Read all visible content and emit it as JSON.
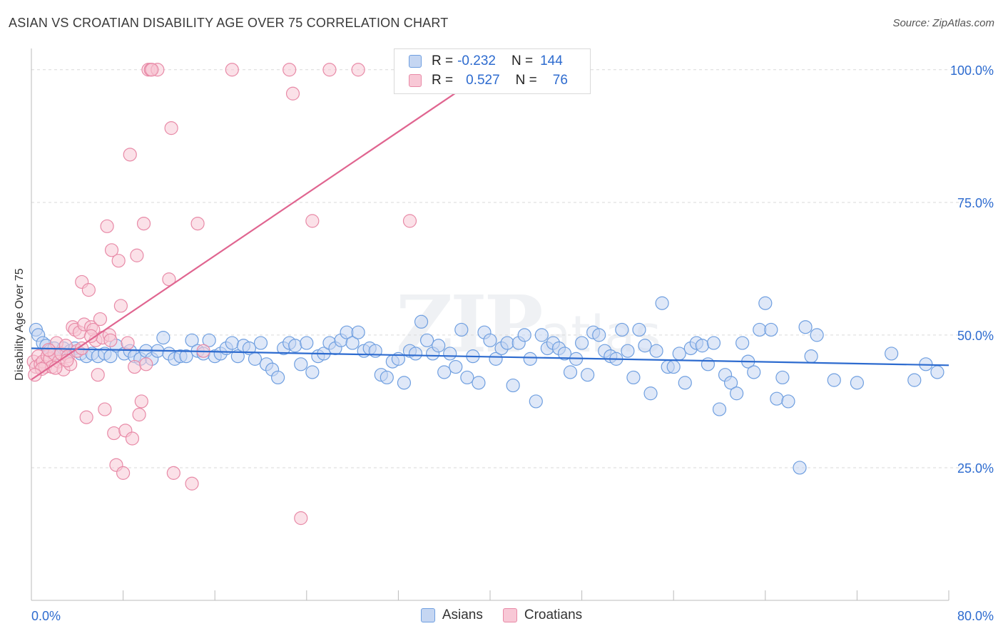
{
  "header": {
    "title": "ASIAN VS CROATIAN DISABILITY AGE OVER 75 CORRELATION CHART",
    "source": "Source: ZipAtlas.com"
  },
  "watermark": {
    "big": "ZIP",
    "small": "atlas"
  },
  "colors": {
    "asians_fill": "#c5d6f2",
    "asians_stroke": "#6f9fe0",
    "asians_line": "#2d6bcf",
    "croatians_fill": "#f8c8d6",
    "croatians_stroke": "#e88aa7",
    "croatians_line": "#e06590",
    "axis_label": "#2d6bcf",
    "grid": "#d9d9d9"
  },
  "legend": {
    "rows": [
      {
        "r_label": "R =",
        "r_value": "-0.232",
        "n_label": "N =",
        "n_value": "144"
      },
      {
        "r_label": "R =",
        "r_value": "0.527",
        "n_label": "N =",
        "n_value": "76"
      }
    ]
  },
  "bottom_legend": {
    "asians": "Asians",
    "croatians": "Croatians"
  },
  "chart_data": {
    "type": "scatter",
    "xlabel": "",
    "ylabel": "Disability Age Over 75",
    "xlim": [
      0,
      80
    ],
    "ylim": [
      0,
      104
    ],
    "x_tick_labels": [
      {
        "value": 0,
        "label": "0.0%"
      },
      {
        "value": 80,
        "label": "80.0%"
      }
    ],
    "y_tick_labels": [
      {
        "value": 25,
        "label": "25.0%"
      },
      {
        "value": 50,
        "label": "50.0%"
      },
      {
        "value": 75,
        "label": "75.0%"
      },
      {
        "value": 100,
        "label": "100.0%"
      }
    ],
    "grid": true,
    "legend_position": "top-center",
    "series": [
      {
        "name": "Asians",
        "trend": {
          "x": [
            0,
            80
          ],
          "y": [
            47.5,
            44.3
          ]
        },
        "points": [
          [
            0.4,
            51
          ],
          [
            0.6,
            50
          ],
          [
            1,
            48.5
          ],
          [
            1.3,
            48
          ],
          [
            1.6,
            47
          ],
          [
            2,
            47.5
          ],
          [
            2.4,
            46.5
          ],
          [
            2.8,
            47.5
          ],
          [
            3.4,
            47
          ],
          [
            3.8,
            47.5
          ],
          [
            4.3,
            46.5
          ],
          [
            4.8,
            46
          ],
          [
            5.3,
            46.5
          ],
          [
            5.8,
            46
          ],
          [
            6.4,
            46.5
          ],
          [
            6.9,
            46
          ],
          [
            7.4,
            48
          ],
          [
            8.1,
            46.5
          ],
          [
            8.6,
            47
          ],
          [
            9,
            46
          ],
          [
            9.5,
            45.5
          ],
          [
            10,
            47
          ],
          [
            10.5,
            45.5
          ],
          [
            11,
            47
          ],
          [
            11.5,
            49.5
          ],
          [
            12,
            46.5
          ],
          [
            12.5,
            45.5
          ],
          [
            13,
            46
          ],
          [
            13.5,
            46
          ],
          [
            14,
            49
          ],
          [
            14.5,
            47
          ],
          [
            15,
            46.5
          ],
          [
            15.5,
            49
          ],
          [
            16,
            46
          ],
          [
            16.5,
            46.5
          ],
          [
            17,
            47.5
          ],
          [
            17.5,
            48.5
          ],
          [
            18,
            46
          ],
          [
            18.5,
            48
          ],
          [
            19,
            47.5
          ],
          [
            19.5,
            45.5
          ],
          [
            20,
            48.5
          ],
          [
            20.5,
            44.5
          ],
          [
            21,
            43.5
          ],
          [
            21.5,
            42
          ],
          [
            22,
            47.5
          ],
          [
            22.5,
            48.5
          ],
          [
            23,
            48
          ],
          [
            23.5,
            44.5
          ],
          [
            24,
            48.5
          ],
          [
            24.5,
            43
          ],
          [
            25,
            46
          ],
          [
            25.5,
            46.5
          ],
          [
            26,
            48.5
          ],
          [
            26.5,
            47.5
          ],
          [
            27,
            49
          ],
          [
            27.5,
            50.5
          ],
          [
            28,
            48.5
          ],
          [
            28.5,
            50.5
          ],
          [
            29,
            47
          ],
          [
            29.5,
            47.5
          ],
          [
            30,
            47
          ],
          [
            30.5,
            42.5
          ],
          [
            31,
            42
          ],
          [
            31.5,
            45
          ],
          [
            32,
            45.5
          ],
          [
            32.5,
            41
          ],
          [
            33,
            47
          ],
          [
            33.5,
            46.5
          ],
          [
            34,
            52.5
          ],
          [
            34.5,
            49
          ],
          [
            35,
            46.5
          ],
          [
            35.5,
            48
          ],
          [
            36,
            43
          ],
          [
            36.5,
            46.5
          ],
          [
            37,
            44
          ],
          [
            37.5,
            51
          ],
          [
            38,
            42
          ],
          [
            38.5,
            46
          ],
          [
            39,
            41
          ],
          [
            39.5,
            50.5
          ],
          [
            40,
            49
          ],
          [
            40.5,
            45.5
          ],
          [
            41,
            47.5
          ],
          [
            41.5,
            48.5
          ],
          [
            42,
            40.5
          ],
          [
            42.5,
            48.5
          ],
          [
            43,
            50
          ],
          [
            43.5,
            45.5
          ],
          [
            44,
            37.5
          ],
          [
            44.5,
            50
          ],
          [
            45,
            47.5
          ],
          [
            45.5,
            48.5
          ],
          [
            46,
            47.5
          ],
          [
            46.5,
            46.5
          ],
          [
            47,
            43
          ],
          [
            47.5,
            45.5
          ],
          [
            48,
            48.5
          ],
          [
            48.5,
            42.5
          ],
          [
            49,
            50.5
          ],
          [
            49.5,
            50
          ],
          [
            50,
            47
          ],
          [
            50.5,
            46
          ],
          [
            51,
            45.5
          ],
          [
            51.5,
            51
          ],
          [
            52,
            47
          ],
          [
            52.5,
            42
          ],
          [
            53,
            51
          ],
          [
            53.5,
            48
          ],
          [
            54,
            39
          ],
          [
            54.5,
            47
          ],
          [
            55,
            56
          ],
          [
            55.5,
            44
          ],
          [
            56,
            44
          ],
          [
            56.5,
            46.5
          ],
          [
            57,
            41
          ],
          [
            57.5,
            47.5
          ],
          [
            58,
            48.5
          ],
          [
            58.5,
            48
          ],
          [
            59,
            44.5
          ],
          [
            59.5,
            48.5
          ],
          [
            60,
            36
          ],
          [
            60.5,
            42.5
          ],
          [
            61,
            41
          ],
          [
            61.5,
            39
          ],
          [
            62,
            48.5
          ],
          [
            62.5,
            45
          ],
          [
            63,
            43
          ],
          [
            63.5,
            51
          ],
          [
            64,
            56
          ],
          [
            64.5,
            51
          ],
          [
            65,
            38
          ],
          [
            65.5,
            42
          ],
          [
            66,
            37.5
          ],
          [
            67,
            25
          ],
          [
            67.5,
            51.5
          ],
          [
            68,
            46
          ],
          [
            68.5,
            50
          ],
          [
            70,
            41.5
          ],
          [
            72,
            41
          ],
          [
            75,
            46.5
          ],
          [
            77,
            41.5
          ],
          [
            78,
            44.5
          ],
          [
            79,
            43
          ]
        ]
      },
      {
        "name": "Croatians",
        "trend": {
          "x": [
            0,
            40
          ],
          "y": [
            41.6,
            100
          ]
        },
        "points": [
          [
            0.2,
            45
          ],
          [
            0.4,
            44
          ],
          [
            0.6,
            46
          ],
          [
            0.8,
            44.5
          ],
          [
            1,
            45
          ],
          [
            1.2,
            44
          ],
          [
            1.4,
            46
          ],
          [
            1.6,
            45.5
          ],
          [
            1.8,
            44
          ],
          [
            2,
            46.5
          ],
          [
            2.2,
            48.5
          ],
          [
            2.4,
            45
          ],
          [
            2.6,
            46.5
          ],
          [
            2.8,
            43.5
          ],
          [
            3,
            48
          ],
          [
            3.2,
            46
          ],
          [
            3.4,
            44.5
          ],
          [
            3.6,
            51.5
          ],
          [
            3.8,
            51
          ],
          [
            4,
            47
          ],
          [
            4.2,
            50.5
          ],
          [
            4.4,
            60
          ],
          [
            4.6,
            52
          ],
          [
            4.8,
            34.5
          ],
          [
            5,
            58.5
          ],
          [
            5.2,
            51.5
          ],
          [
            5.4,
            51
          ],
          [
            5.6,
            49
          ],
          [
            5.8,
            42.5
          ],
          [
            6,
            53
          ],
          [
            6.2,
            49.5
          ],
          [
            6.4,
            36
          ],
          [
            6.6,
            70.5
          ],
          [
            6.8,
            50
          ],
          [
            7,
            66
          ],
          [
            7.2,
            31.5
          ],
          [
            7.4,
            25.5
          ],
          [
            7.6,
            64
          ],
          [
            7.8,
            55.5
          ],
          [
            8,
            24
          ],
          [
            8.2,
            32
          ],
          [
            8.4,
            48.5
          ],
          [
            8.6,
            84
          ],
          [
            8.8,
            30.5
          ],
          [
            9,
            44
          ],
          [
            9.2,
            65
          ],
          [
            9.4,
            35
          ],
          [
            9.6,
            37.5
          ],
          [
            9.8,
            71
          ],
          [
            10,
            44.5
          ],
          [
            10.2,
            100
          ],
          [
            10.4,
            100
          ],
          [
            11,
            100
          ],
          [
            12,
            60.5
          ],
          [
            12.2,
            89
          ],
          [
            12.4,
            24
          ],
          [
            14,
            22
          ],
          [
            14.5,
            71
          ],
          [
            15,
            47
          ],
          [
            17.5,
            100
          ],
          [
            22.5,
            100
          ],
          [
            22.8,
            95.5
          ],
          [
            23.5,
            15.5
          ],
          [
            24.5,
            71.5
          ],
          [
            26,
            100
          ],
          [
            28.5,
            100
          ],
          [
            33,
            71.5
          ],
          [
            10.5,
            100
          ],
          [
            5.2,
            49.8
          ],
          [
            3.1,
            45.2
          ],
          [
            2.1,
            43.8
          ],
          [
            1.5,
            47.2
          ],
          [
            0.9,
            43.6
          ],
          [
            6.9,
            49
          ],
          [
            4.4,
            47.5
          ],
          [
            0.3,
            42.5
          ]
        ]
      }
    ]
  }
}
